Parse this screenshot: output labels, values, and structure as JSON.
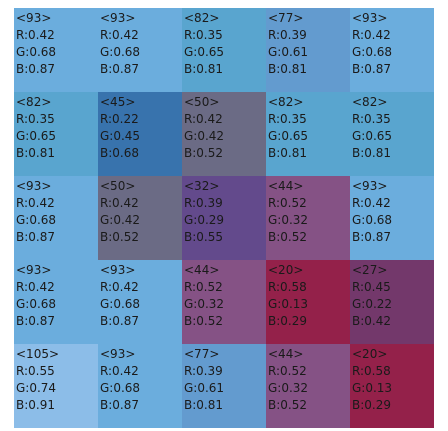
{
  "grid": {
    "rows": [
      [
        {
          "label": "<93>",
          "r": "R:0.42",
          "g": "G:0.68",
          "b": "B:0.87",
          "color": "#6baddd"
        },
        {
          "label": "<93>",
          "r": "R:0.42",
          "g": "G:0.68",
          "b": "B:0.87",
          "color": "#6baddd"
        },
        {
          "label": "<82>",
          "r": "R:0.35",
          "g": "G:0.65",
          "b": "B:0.81",
          "color": "#59a5cf"
        },
        {
          "label": "<77>",
          "r": "R:0.39",
          "g": "G:0.61",
          "b": "B:0.81",
          "color": "#639bcf"
        },
        {
          "label": "<93>",
          "r": "R:0.42",
          "g": "G:0.68",
          "b": "B:0.87",
          "color": "#6baddd"
        }
      ],
      [
        {
          "label": "<82>",
          "r": "R:0.35",
          "g": "G:0.65",
          "b": "B:0.81",
          "color": "#59a5cf"
        },
        {
          "label": "<45>",
          "r": "R:0.22",
          "g": "G:0.45",
          "b": "B:0.68",
          "color": "#3873ad"
        },
        {
          "label": "<50>",
          "r": "R:0.42",
          "g": "G:0.42",
          "b": "B:0.52",
          "color": "#6b6b85"
        },
        {
          "label": "<82>",
          "r": "R:0.35",
          "g": "G:0.65",
          "b": "B:0.81",
          "color": "#59a5cf"
        },
        {
          "label": "<82>",
          "r": "R:0.35",
          "g": "G:0.65",
          "b": "B:0.81",
          "color": "#59a5cf"
        }
      ],
      [
        {
          "label": "<93>",
          "r": "R:0.42",
          "g": "G:0.68",
          "b": "B:0.87",
          "color": "#6baddd"
        },
        {
          "label": "<50>",
          "r": "R:0.42",
          "g": "G:0.42",
          "b": "B:0.52",
          "color": "#6b6b85"
        },
        {
          "label": "<32>",
          "r": "R:0.39",
          "g": "G:0.29",
          "b": "B:0.55",
          "color": "#634a8c"
        },
        {
          "label": "<44>",
          "r": "R:0.52",
          "g": "G:0.32",
          "b": "B:0.52",
          "color": "#855285"
        },
        {
          "label": "<93>",
          "r": "R:0.42",
          "g": "G:0.68",
          "b": "B:0.87",
          "color": "#6baddd"
        }
      ],
      [
        {
          "label": "<93>",
          "r": "R:0.42",
          "g": "G:0.68",
          "b": "B:0.87",
          "color": "#6baddd"
        },
        {
          "label": "<93>",
          "r": "R:0.42",
          "g": "G:0.68",
          "b": "B:0.87",
          "color": "#6baddd"
        },
        {
          "label": "<44>",
          "r": "R:0.52",
          "g": "G:0.32",
          "b": "B:0.52",
          "color": "#855285"
        },
        {
          "label": "<20>",
          "r": "R:0.58",
          "g": "G:0.13",
          "b": "B:0.29",
          "color": "#94214a"
        },
        {
          "label": "<27>",
          "r": "R:0.45",
          "g": "G:0.22",
          "b": "B:0.42",
          "color": "#73386b"
        }
      ],
      [
        {
          "label": "<105>",
          "r": "R:0.55",
          "g": "G:0.74",
          "b": "B:0.91",
          "color": "#8cbde8"
        },
        {
          "label": "<93>",
          "r": "R:0.42",
          "g": "G:0.68",
          "b": "B:0.87",
          "color": "#6baddd"
        },
        {
          "label": "<77>",
          "r": "R:0.39",
          "g": "G:0.61",
          "b": "B:0.81",
          "color": "#639bcf"
        },
        {
          "label": "<44>",
          "r": "R:0.52",
          "g": "G:0.32",
          "b": "B:0.52",
          "color": "#855285"
        },
        {
          "label": "<20>",
          "r": "R:0.58",
          "g": "G:0.13",
          "b": "B:0.29",
          "color": "#94214a"
        }
      ]
    ]
  }
}
